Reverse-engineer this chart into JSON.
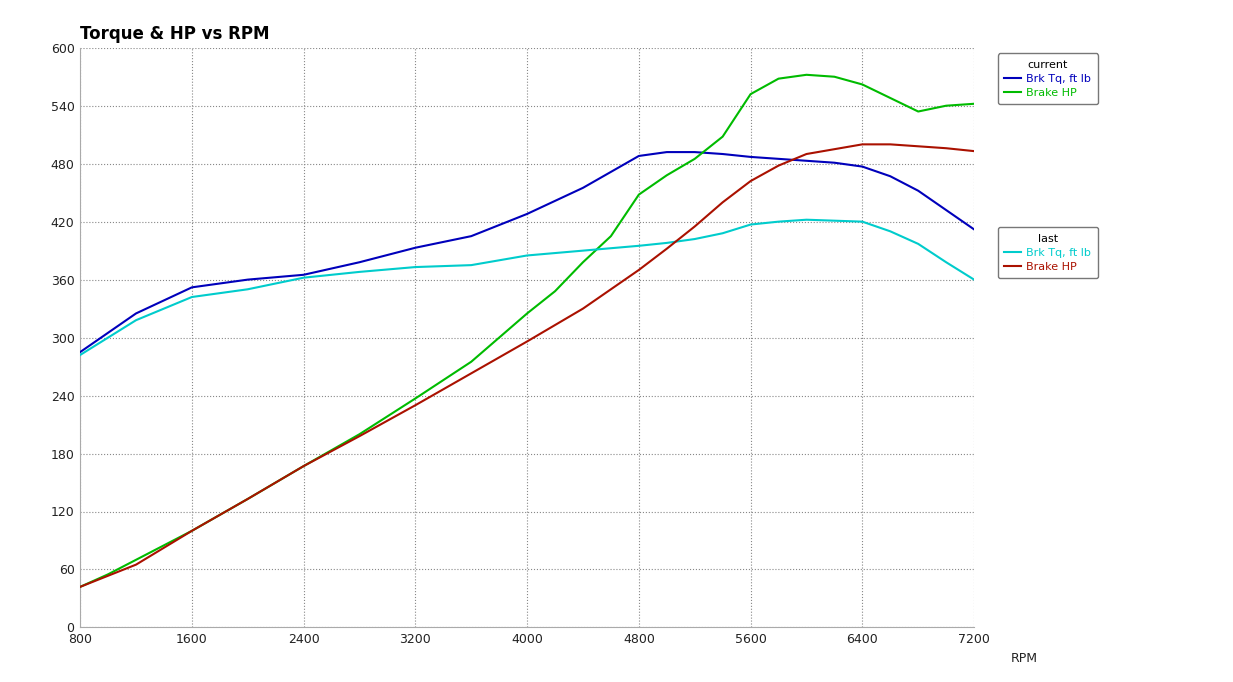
{
  "title": "Torque & HP vs RPM",
  "xlim": [
    800,
    7200
  ],
  "ylim": [
    0,
    600
  ],
  "xticks": [
    800,
    1600,
    2400,
    3200,
    4000,
    4800,
    5600,
    6400,
    7200
  ],
  "yticks": [
    0,
    60,
    120,
    180,
    240,
    300,
    360,
    420,
    480,
    540,
    600
  ],
  "fig_facecolor": "#ffffff",
  "ax_facecolor": "#ffffff",
  "current_brk_tq_color": "#0000bb",
  "current_brake_hp_color": "#00bb00",
  "last_brk_tq_color": "#00cccc",
  "last_brake_hp_color": "#aa1100",
  "current_brk_tq_rpm": [
    800,
    1200,
    1600,
    2000,
    2400,
    2800,
    3200,
    3600,
    4000,
    4400,
    4800,
    5000,
    5200,
    5400,
    5600,
    5800,
    6000,
    6200,
    6400,
    6600,
    6800,
    7000,
    7200
  ],
  "current_brk_tq_val": [
    285,
    325,
    352,
    360,
    365,
    378,
    393,
    405,
    428,
    455,
    488,
    492,
    492,
    490,
    487,
    485,
    483,
    481,
    477,
    467,
    452,
    432,
    412
  ],
  "current_brake_hp_rpm": [
    800,
    1000,
    1200,
    1600,
    2000,
    2400,
    2800,
    3200,
    3600,
    4000,
    4200,
    4400,
    4600,
    4800,
    5000,
    5200,
    5400,
    5600,
    5800,
    6000,
    6200,
    6400,
    6600,
    6800,
    7000,
    7200
  ],
  "current_brake_hp_val": [
    42,
    55,
    70,
    100,
    133,
    167,
    200,
    237,
    275,
    325,
    348,
    378,
    405,
    448,
    468,
    485,
    508,
    552,
    568,
    572,
    570,
    562,
    548,
    534,
    540,
    542
  ],
  "last_brk_tq_rpm": [
    800,
    1200,
    1600,
    2000,
    2400,
    2800,
    3200,
    3600,
    4000,
    4400,
    4800,
    5000,
    5200,
    5400,
    5600,
    5800,
    6000,
    6200,
    6400,
    6600,
    6800,
    7000,
    7200
  ],
  "last_brk_tq_val": [
    282,
    318,
    342,
    350,
    362,
    368,
    373,
    375,
    385,
    390,
    395,
    398,
    402,
    408,
    417,
    420,
    422,
    421,
    420,
    410,
    397,
    378,
    360
  ],
  "last_brake_hp_rpm": [
    800,
    1200,
    1600,
    2000,
    2400,
    2800,
    3200,
    3600,
    4000,
    4400,
    4800,
    5000,
    5200,
    5400,
    5600,
    5800,
    6000,
    6200,
    6400,
    6600,
    6800,
    7000,
    7200
  ],
  "last_brake_hp_val": [
    42,
    65,
    100,
    133,
    167,
    198,
    230,
    263,
    296,
    330,
    370,
    392,
    415,
    440,
    462,
    478,
    490,
    495,
    500,
    500,
    498,
    496,
    493
  ],
  "legend1_title": "current",
  "legend1_labels": [
    "Brk Tq, ft lb",
    "Brake HP"
  ],
  "legend2_title": "last",
  "legend2_labels": [
    "Brk Tq, ft lb",
    "Brake HP"
  ],
  "xlabel_text": "RPM",
  "linewidth": 1.5
}
